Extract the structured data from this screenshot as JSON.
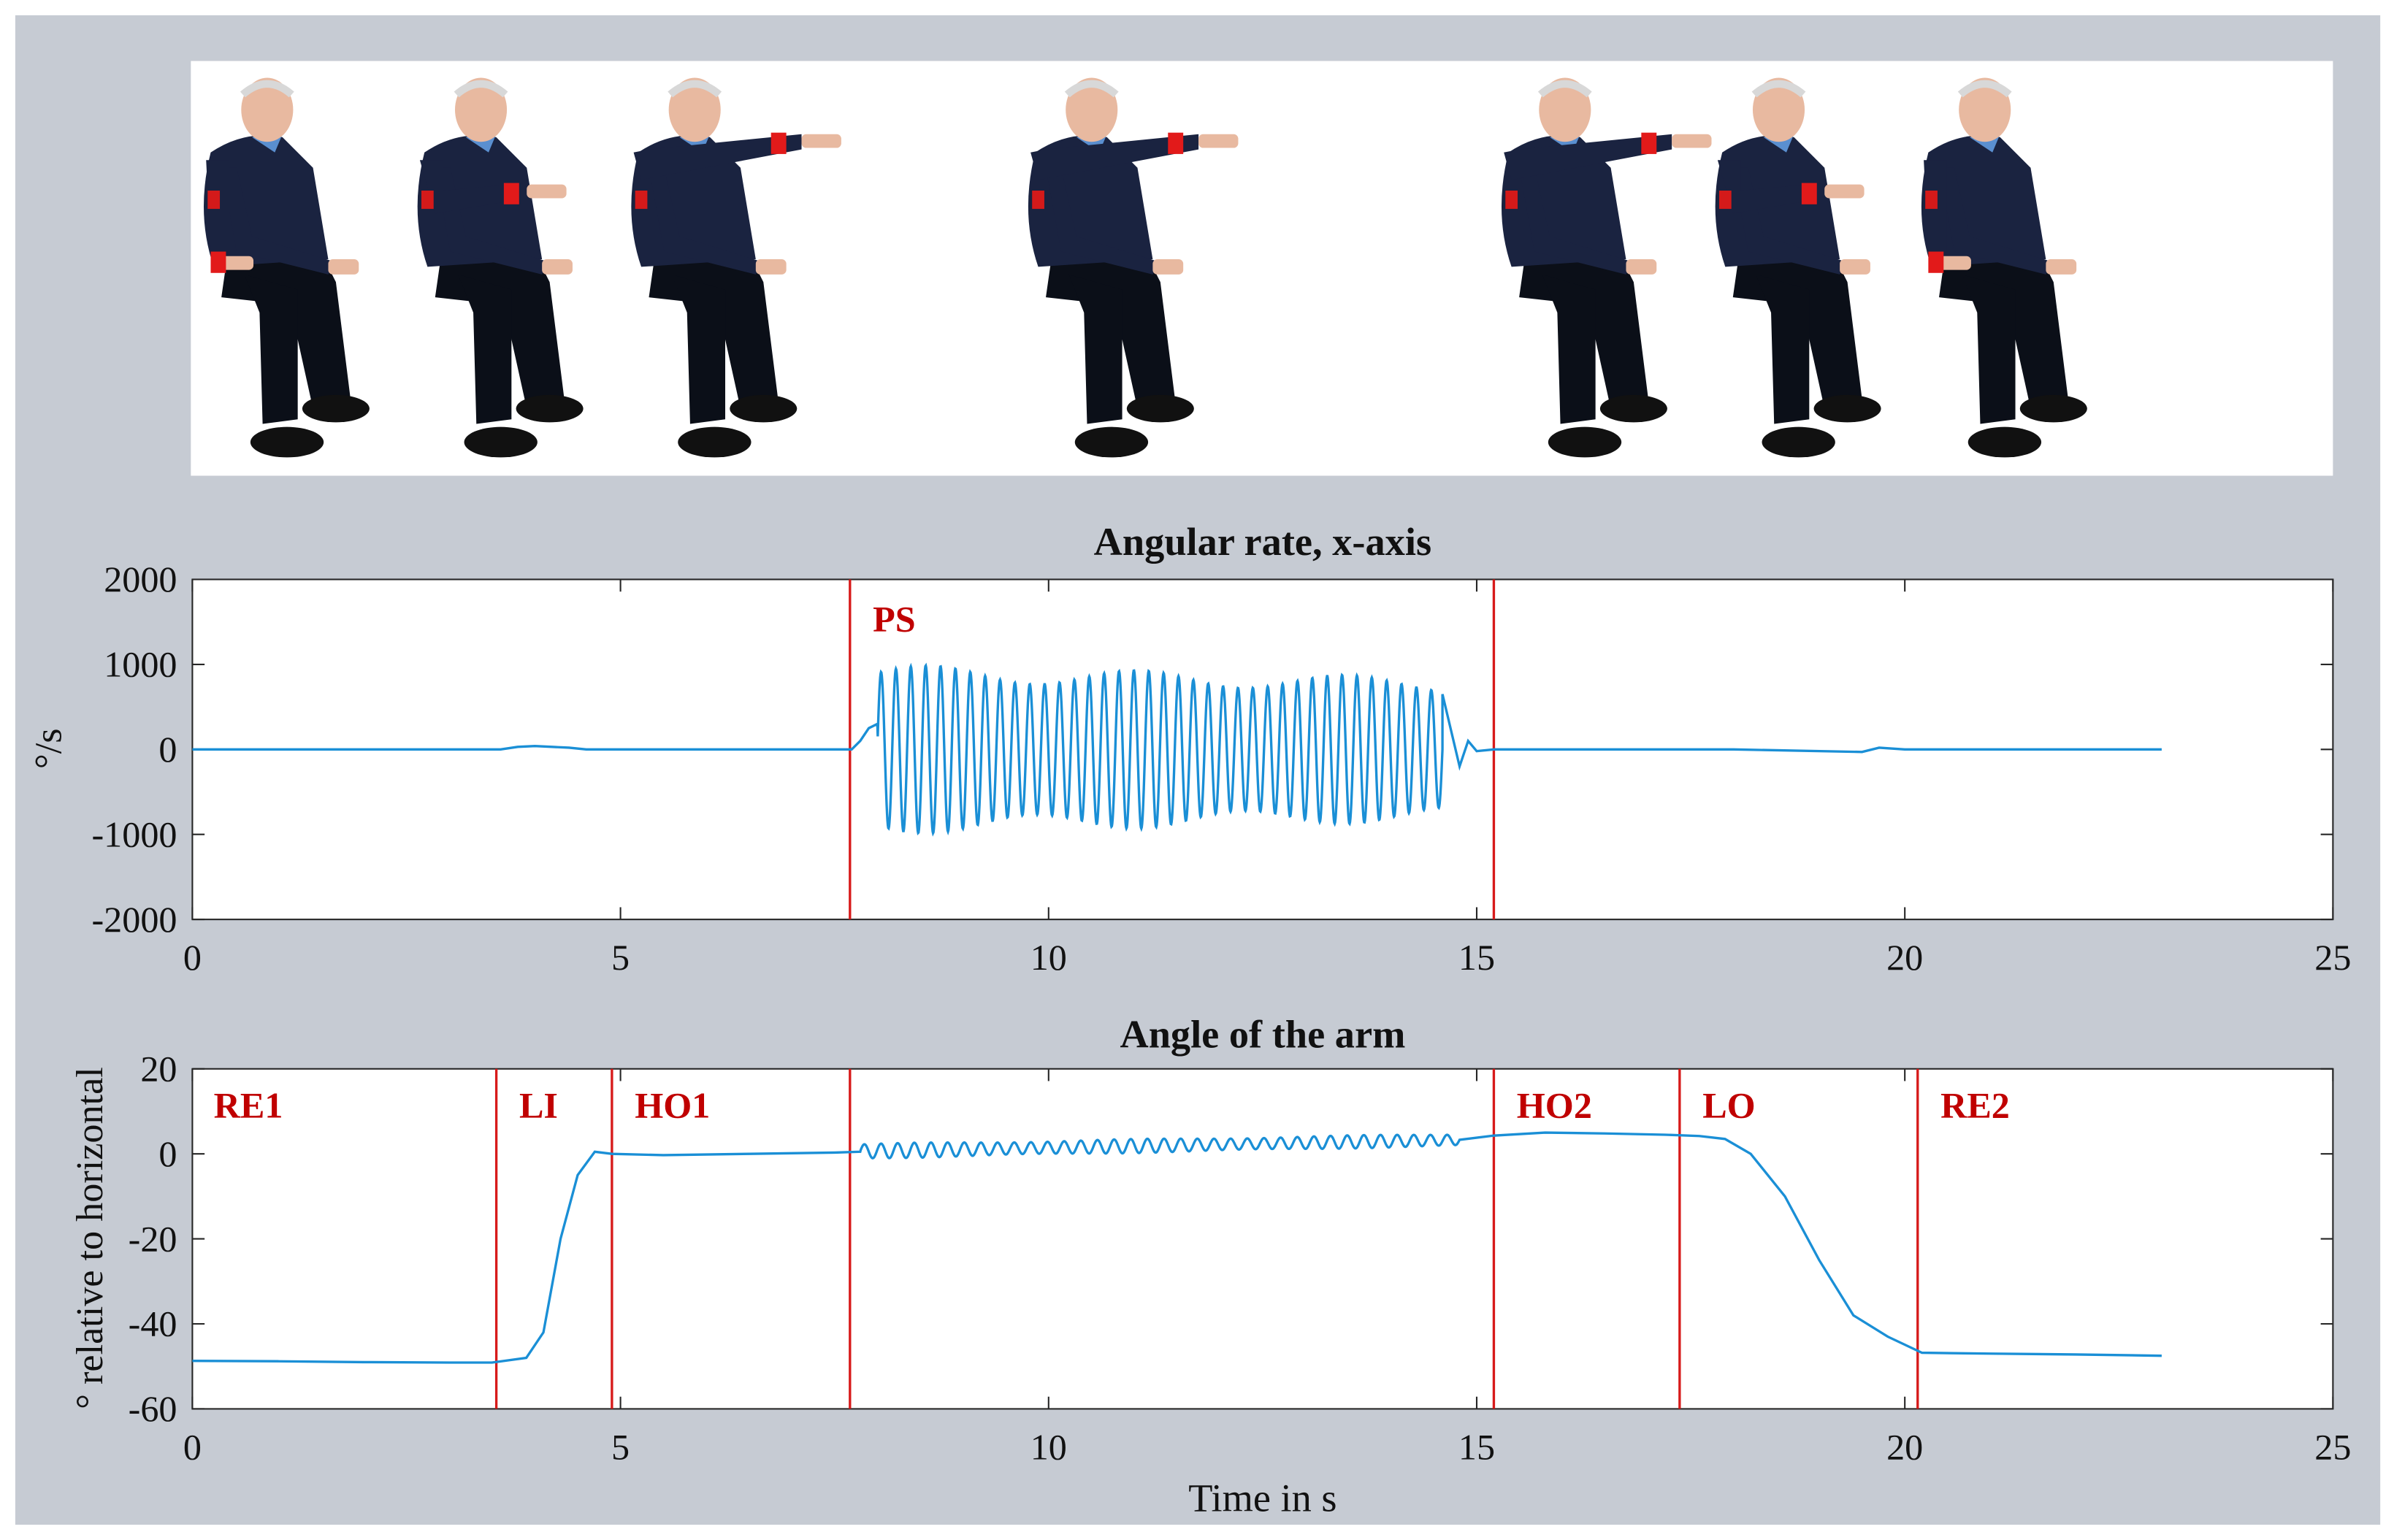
{
  "photo_strip": {
    "poses": [
      {
        "name": "rest",
        "arm": "down"
      },
      {
        "name": "lift-mid",
        "arm": "mid"
      },
      {
        "name": "hold",
        "arm": "up"
      },
      {
        "name": "pronation-supination",
        "arm": "up"
      },
      {
        "name": "hold",
        "arm": "up"
      },
      {
        "name": "lower-mid",
        "arm": "mid"
      },
      {
        "name": "rest",
        "arm": "down"
      }
    ]
  },
  "chart_data": [
    {
      "type": "line",
      "title": "Angular rate, x-axis",
      "xlabel": "",
      "ylabel": "°/s",
      "xlim": [
        0,
        25
      ],
      "ylim": [
        -2000,
        2000
      ],
      "xticks": [
        "0",
        "5",
        "10",
        "15",
        "20",
        "25"
      ],
      "yticks": [
        "2000",
        "1000",
        "0",
        "-1000",
        "-2000"
      ],
      "line_color": "#1a8fd6",
      "marker_color": "#d71a1a",
      "series": [
        {
          "x": [
            0,
            3.6,
            3.8,
            4.0,
            4.2,
            4.4,
            4.6,
            7.5,
            7.7,
            7.8,
            7.9,
            8.0
          ],
          "y": [
            0,
            0,
            30,
            40,
            30,
            20,
            0,
            0,
            0,
            100,
            250,
            300
          ],
          "oscillation": {
            "start": 8.0,
            "end": 14.6,
            "cycles": 38,
            "amp_start": 1000,
            "amp_end": 850
          },
          "tail": {
            "x": [
              14.6,
              14.8,
              14.9,
              15.0,
              15.2,
              18.0,
              19.5,
              19.7,
              20.0,
              23.0
            ],
            "y": [
              650,
              -200,
              100,
              -20,
              0,
              0,
              -30,
              20,
              0,
              0
            ]
          }
        }
      ],
      "vlines": [
        {
          "x": 7.68,
          "label": "PS"
        },
        {
          "x": 15.2,
          "label": ""
        }
      ]
    },
    {
      "type": "line",
      "title": "Angle of the arm",
      "xlabel": "Time in s",
      "ylabel": "° relative to horizontal",
      "xlim": [
        0,
        25
      ],
      "ylim": [
        -60,
        20
      ],
      "xticks": [
        "0",
        "5",
        "10",
        "15",
        "20",
        "25"
      ],
      "yticks": [
        "20",
        "0",
        "-20",
        "-40",
        "-60"
      ],
      "line_color": "#1a8fd6",
      "marker_color": "#d71a1a",
      "series": [
        {
          "x": [
            0,
            1,
            2,
            3,
            3.5,
            3.9,
            4.1,
            4.3,
            4.5,
            4.7,
            4.9,
            5.5,
            6.5,
            7.5,
            7.8
          ],
          "y": [
            -48.7,
            -48.8,
            -49.0,
            -49.1,
            -49.1,
            -48,
            -42,
            -20,
            -5,
            0.5,
            0,
            -0.3,
            0,
            0.3,
            0.5
          ],
          "oscillation": {
            "start": 7.8,
            "end": 14.8,
            "cycles": 36,
            "amp_start": 1.8,
            "amp_end": 1.5,
            "base_start": 0.6,
            "base_end": 3.3
          },
          "tail": {
            "x": [
              14.8,
              15.2,
              15.8,
              16.5,
              17.2,
              17.6,
              17.9,
              18.2,
              18.6,
              19.0,
              19.4,
              19.8,
              20.2,
              21,
              22,
              23
            ],
            "y": [
              3.3,
              4.3,
              5.0,
              4.8,
              4.5,
              4.2,
              3.5,
              0,
              -10,
              -25,
              -38,
              -43,
              -46.8,
              -47.0,
              -47.2,
              -47.5
            ]
          }
        }
      ],
      "vlines": [
        {
          "x": 3.55,
          "label": "LI"
        },
        {
          "x": 4.9,
          "label": "HO1"
        },
        {
          "x": 7.68,
          "label": ""
        },
        {
          "x": 15.2,
          "label": "HO2"
        },
        {
          "x": 17.37,
          "label": "LO"
        },
        {
          "x": 20.15,
          "label": "RE2"
        }
      ],
      "corner_label": "RE1"
    }
  ]
}
